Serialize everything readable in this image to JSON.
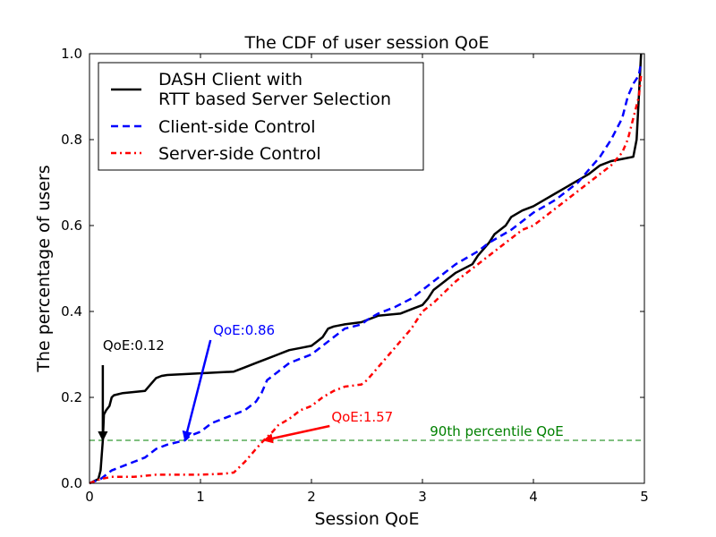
{
  "chart_data": {
    "type": "line",
    "title": "The CDF of user session QoE",
    "xlabel": "Session QoE",
    "ylabel": "The percentage of users",
    "xlim": [
      0,
      5
    ],
    "ylim": [
      0,
      1
    ],
    "xticks": [
      0,
      1,
      2,
      3,
      4,
      5
    ],
    "xtick_labels": [
      "0",
      "1",
      "2",
      "3",
      "4",
      "5"
    ],
    "yticks": [
      0,
      0.2,
      0.4,
      0.6,
      0.8,
      1.0
    ],
    "ytick_labels": [
      "0.0",
      "0.2",
      "0.4",
      "0.6",
      "0.8",
      "1.0"
    ],
    "grid": false,
    "legend_position": "top-left",
    "series": [
      {
        "name": "DASH Client with\nRTT based Server Selection",
        "color": "#000000",
        "style": "solid",
        "x": [
          0.0,
          0.08,
          0.1,
          0.12,
          0.13,
          0.15,
          0.18,
          0.2,
          0.22,
          0.3,
          0.5,
          0.55,
          0.6,
          0.65,
          0.7,
          1.3,
          1.4,
          1.5,
          1.6,
          1.7,
          1.75,
          1.8,
          1.9,
          2.0,
          2.05,
          2.1,
          2.15,
          2.2,
          2.3,
          2.45,
          2.5,
          2.6,
          2.8,
          2.9,
          3.0,
          3.05,
          3.1,
          3.2,
          3.3,
          3.45,
          3.5,
          3.55,
          3.6,
          3.65,
          3.75,
          3.8,
          3.9,
          4.0,
          4.1,
          4.2,
          4.3,
          4.4,
          4.5,
          4.6,
          4.7,
          4.8,
          4.9,
          4.93,
          4.95,
          4.97
        ],
        "y": [
          0.0,
          0.01,
          0.03,
          0.1,
          0.16,
          0.17,
          0.18,
          0.2,
          0.205,
          0.21,
          0.215,
          0.23,
          0.245,
          0.25,
          0.252,
          0.26,
          0.27,
          0.28,
          0.29,
          0.3,
          0.305,
          0.31,
          0.315,
          0.32,
          0.33,
          0.34,
          0.36,
          0.365,
          0.37,
          0.375,
          0.38,
          0.39,
          0.395,
          0.405,
          0.415,
          0.43,
          0.45,
          0.47,
          0.49,
          0.51,
          0.53,
          0.545,
          0.56,
          0.58,
          0.6,
          0.62,
          0.635,
          0.645,
          0.66,
          0.675,
          0.69,
          0.705,
          0.72,
          0.74,
          0.75,
          0.755,
          0.76,
          0.8,
          0.9,
          1.0
        ]
      },
      {
        "name": "Client-side Control",
        "color": "#0000ff",
        "style": "dashed",
        "x": [
          0.0,
          0.1,
          0.2,
          0.3,
          0.4,
          0.5,
          0.6,
          0.7,
          0.86,
          0.9,
          1.0,
          1.1,
          1.2,
          1.3,
          1.4,
          1.5,
          1.55,
          1.6,
          1.7,
          1.8,
          1.9,
          2.0,
          2.1,
          2.2,
          2.3,
          2.45,
          2.5,
          2.6,
          2.75,
          2.9,
          3.0,
          3.1,
          3.2,
          3.3,
          3.4,
          3.5,
          3.6,
          3.7,
          3.8,
          3.9,
          4.0,
          4.1,
          4.2,
          4.3,
          4.4,
          4.5,
          4.6,
          4.7,
          4.8,
          4.85,
          4.9,
          4.95,
          4.97
        ],
        "y": [
          0.0,
          0.01,
          0.03,
          0.04,
          0.05,
          0.06,
          0.08,
          0.09,
          0.1,
          0.11,
          0.12,
          0.14,
          0.15,
          0.16,
          0.17,
          0.19,
          0.21,
          0.24,
          0.26,
          0.28,
          0.29,
          0.3,
          0.32,
          0.34,
          0.36,
          0.37,
          0.38,
          0.395,
          0.41,
          0.43,
          0.45,
          0.47,
          0.49,
          0.51,
          0.525,
          0.54,
          0.56,
          0.575,
          0.59,
          0.61,
          0.63,
          0.645,
          0.66,
          0.68,
          0.7,
          0.73,
          0.76,
          0.8,
          0.85,
          0.9,
          0.93,
          0.95,
          0.98
        ]
      },
      {
        "name": "Server-side Control",
        "color": "#ff0000",
        "style": "dashdot",
        "x": [
          0.0,
          0.05,
          0.1,
          0.2,
          0.4,
          0.6,
          0.8,
          1.0,
          1.2,
          1.3,
          1.4,
          1.5,
          1.57,
          1.65,
          1.7,
          1.8,
          1.9,
          2.0,
          2.1,
          2.2,
          2.3,
          2.45,
          2.5,
          2.6,
          2.7,
          2.8,
          2.9,
          3.0,
          3.1,
          3.2,
          3.3,
          3.4,
          3.5,
          3.6,
          3.7,
          3.8,
          3.9,
          4.0,
          4.1,
          4.2,
          4.3,
          4.4,
          4.5,
          4.6,
          4.7,
          4.8,
          4.85,
          4.9,
          4.95,
          4.97
        ],
        "y": [
          0.0,
          0.005,
          0.01,
          0.015,
          0.015,
          0.02,
          0.02,
          0.02,
          0.022,
          0.025,
          0.05,
          0.08,
          0.1,
          0.12,
          0.135,
          0.15,
          0.17,
          0.18,
          0.2,
          0.215,
          0.225,
          0.23,
          0.24,
          0.27,
          0.3,
          0.33,
          0.36,
          0.4,
          0.42,
          0.445,
          0.47,
          0.49,
          0.51,
          0.53,
          0.55,
          0.57,
          0.59,
          0.6,
          0.62,
          0.64,
          0.66,
          0.68,
          0.7,
          0.72,
          0.74,
          0.77,
          0.8,
          0.85,
          0.9,
          0.95
        ]
      }
    ],
    "reference_line": {
      "y": 0.1,
      "label": "90th percentile QoE",
      "color": "#008000",
      "style": "dashed"
    },
    "annotations": [
      {
        "text": "QoE:0.12",
        "color": "#000000",
        "point": [
          0.12,
          0.1
        ],
        "text_pos": [
          0.12,
          0.3
        ]
      },
      {
        "text": "QoE:0.86",
        "color": "#0000ff",
        "point": [
          0.86,
          0.1
        ],
        "text_pos": [
          1.05,
          0.35
        ]
      },
      {
        "text": "QoE:1.57",
        "color": "#ff0000",
        "point": [
          1.57,
          0.1
        ],
        "text_pos": [
          2.18,
          0.15
        ]
      }
    ]
  }
}
